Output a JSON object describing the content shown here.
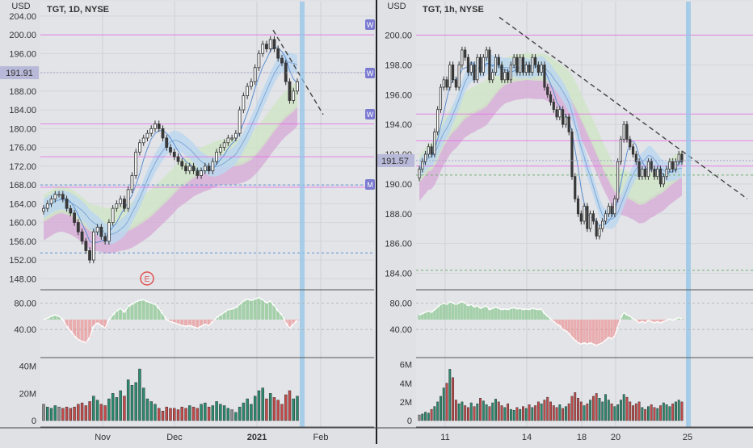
{
  "chart_data": [
    {
      "type": "candlestick",
      "title": "TGT, 1D, NYSE",
      "currency": "USD",
      "current_price_label": "191.91",
      "y_ticks": [
        "204.00",
        "200.00",
        "196.00",
        "192.00",
        "188.00",
        "184.00",
        "180.00",
        "176.00",
        "172.00",
        "168.00",
        "164.00",
        "160.00",
        "156.00",
        "152.00",
        "148.00"
      ],
      "ylim": [
        146,
        205
      ],
      "x_ticks": [
        "Nov",
        "Dec",
        "2021",
        "Feb"
      ],
      "event_marker": "E",
      "side_labels": [
        "W",
        "W",
        "W",
        "M"
      ],
      "x": [
        "10-14",
        "10-15",
        "10-16",
        "10-19",
        "10-20",
        "10-21",
        "10-22",
        "10-23",
        "10-26",
        "10-27",
        "10-28",
        "10-29",
        "10-30",
        "11-02",
        "11-03",
        "11-04",
        "11-05",
        "11-06",
        "11-09",
        "11-10",
        "11-11",
        "11-12",
        "11-13",
        "11-16",
        "11-17",
        "11-18",
        "11-19",
        "11-20",
        "11-23",
        "11-24",
        "11-25",
        "11-27",
        "11-30",
        "12-01",
        "12-02",
        "12-03",
        "12-04",
        "12-07",
        "12-08",
        "12-09",
        "12-10",
        "12-11",
        "12-14",
        "12-15",
        "12-16",
        "12-17",
        "12-18",
        "12-21",
        "12-22",
        "12-23",
        "12-24",
        "12-28",
        "12-29",
        "12-30",
        "12-31",
        "01-04",
        "01-05",
        "01-06",
        "01-07",
        "01-08",
        "01-11",
        "01-12",
        "01-13",
        "01-14",
        "01-15",
        "01-19",
        "01-20"
      ],
      "close": [
        163,
        164,
        165,
        166,
        166,
        165,
        163,
        162,
        160,
        158,
        156,
        154,
        152,
        158,
        159,
        157,
        156,
        160,
        163,
        164,
        165,
        163,
        167,
        170,
        175,
        177,
        178,
        179,
        180,
        181,
        180,
        178,
        176,
        175,
        174,
        173,
        172,
        171,
        172,
        171,
        170,
        171,
        172,
        171,
        173,
        175,
        176,
        177,
        178,
        178,
        179,
        184,
        187,
        189,
        190,
        193,
        196,
        198,
        197,
        199,
        197,
        195,
        194,
        190,
        186,
        188,
        190
      ],
      "indicator": {
        "y_ticks": [
          "80.00",
          "40.00"
        ],
        "ylim": [
          0,
          100
        ],
        "values": [
          55,
          57,
          60,
          62,
          60,
          55,
          45,
          38,
          30,
          25,
          22,
          20,
          28,
          45,
          50,
          46,
          42,
          55,
          62,
          68,
          72,
          66,
          75,
          78,
          82,
          84,
          85,
          82,
          80,
          78,
          72,
          64,
          55,
          52,
          50,
          48,
          46,
          45,
          46,
          44,
          42,
          45,
          48,
          46,
          52,
          58,
          62,
          66,
          70,
          71,
          73,
          78,
          83,
          86,
          84,
          86,
          88,
          85,
          80,
          83,
          76,
          68,
          62,
          50,
          42,
          48,
          54
        ]
      },
      "volume": {
        "y_ticks": [
          "40M",
          "20M",
          "0"
        ],
        "ylim": [
          0,
          44
        ],
        "values": [
          12,
          10,
          9,
          11,
          10,
          9,
          10,
          9,
          10,
          12,
          13,
          11,
          14,
          18,
          15,
          12,
          11,
          16,
          20,
          17,
          22,
          18,
          30,
          26,
          28,
          38,
          24,
          16,
          14,
          12,
          9,
          7,
          10,
          9,
          9,
          8,
          10,
          9,
          11,
          10,
          9,
          12,
          13,
          10,
          11,
          14,
          12,
          11,
          9,
          8,
          6,
          10,
          13,
          16,
          12,
          18,
          22,
          24,
          16,
          20,
          17,
          15,
          12,
          19,
          22,
          16,
          18
        ]
      }
    },
    {
      "type": "candlestick",
      "title": "TGT, 1h, NYSE",
      "currency": "USD",
      "current_price_label": "191.57",
      "y_ticks": [
        "200.00",
        "198.00",
        "196.00",
        "194.00",
        "192.00",
        "190.00",
        "188.00",
        "186.00",
        "184.00"
      ],
      "ylim": [
        183,
        201.6
      ],
      "x_ticks": [
        "11",
        "14",
        "18",
        "20",
        "25"
      ],
      "close": [
        191,
        191.5,
        192,
        192.5,
        192,
        193.5,
        195,
        196.5,
        197,
        196.5,
        198,
        197,
        196.5,
        198,
        199,
        198.5,
        197.5,
        198,
        197,
        198.5,
        197.5,
        198.5,
        199,
        197,
        197.5,
        198.5,
        198,
        197,
        197.5,
        197,
        198,
        198.5,
        197.5,
        198.5,
        197.5,
        198,
        197.5,
        198.5,
        198,
        197.5,
        198,
        196.5,
        196,
        195.5,
        195,
        194.5,
        195,
        194,
        194.5,
        193.5,
        190.5,
        189,
        188,
        187.5,
        188.5,
        187,
        188,
        187.5,
        186.5,
        187,
        187.5,
        188,
        188.5,
        188,
        189,
        191.5,
        193,
        194,
        193,
        192.5,
        192,
        191.5,
        190.5,
        191,
        190.5,
        191.5,
        191,
        190.5,
        191,
        190,
        190.5,
        191,
        191.5,
        191,
        191.5,
        192,
        191.5
      ],
      "indicator": {
        "y_ticks": [
          "80.00",
          "40.00"
        ],
        "ylim": [
          0,
          100
        ],
        "values": [
          62,
          64,
          66,
          68,
          66,
          70,
          74,
          78,
          80,
          78,
          82,
          80,
          78,
          80,
          82,
          80,
          76,
          78,
          74,
          76,
          72,
          74,
          76,
          70,
          72,
          74,
          72,
          70,
          71,
          70,
          72,
          73,
          71,
          72,
          70,
          71,
          70,
          72,
          71,
          70,
          71,
          64,
          60,
          56,
          52,
          48,
          46,
          40,
          38,
          34,
          28,
          24,
          20,
          18,
          20,
          18,
          20,
          18,
          16,
          18,
          20,
          24,
          28,
          26,
          30,
          44,
          58,
          66,
          62,
          60,
          56,
          54,
          50,
          52,
          50,
          54,
          52,
          50,
          52,
          50,
          52,
          54,
          56,
          54,
          56,
          58,
          56
        ]
      },
      "volume": {
        "y_ticks": [
          "6M",
          "4M",
          "2M",
          "0"
        ],
        "ylim": [
          0,
          6.4
        ],
        "values": [
          0.6,
          0.7,
          0.9,
          0.8,
          1.2,
          1.5,
          2.0,
          2.6,
          3.5,
          4.0,
          5.5,
          4.6,
          2.2,
          1.8,
          2.0,
          1.6,
          1.4,
          1.9,
          1.5,
          1.8,
          2.4,
          2.1,
          1.7,
          1.5,
          1.9,
          2.3,
          2.0,
          1.6,
          1.4,
          1.8,
          1.2,
          1.1,
          1.4,
          1.2,
          1.5,
          1.3,
          1.7,
          1.4,
          1.6,
          2.0,
          1.8,
          2.2,
          2.5,
          2.0,
          1.6,
          1.4,
          1.7,
          1.3,
          1.5,
          1.8,
          2.6,
          3.0,
          2.4,
          2.0,
          1.6,
          1.8,
          2.2,
          2.6,
          2.9,
          2.4,
          2.0,
          2.8,
          2.2,
          1.8,
          1.5,
          1.7,
          2.2,
          2.8,
          2.5,
          2.0,
          1.6,
          1.8,
          2.0,
          1.4,
          1.2,
          1.5,
          1.7,
          1.4,
          1.3,
          1.6,
          1.9,
          1.7,
          1.5,
          1.8,
          2.0,
          2.2,
          2.0
        ]
      }
    }
  ],
  "colors": {
    "background": "#dfe1e5",
    "bull_candle": "#ffffff",
    "bear_candle": "#3a3a3a",
    "vol_up": "#2a8c6e",
    "vol_down": "#c74a4a",
    "vol_neutral": "#8c8c8c",
    "highlight_bar": "#8fc3ea",
    "ribbon_blue": "#bcd7ef",
    "ribbon_green": "#cfe5c6",
    "ribbon_pink": "#d6a8d6",
    "osc_green": "#6fbf73",
    "osc_red": "#f08080",
    "magenta_line": "#e66ae6",
    "price_tag": "#b8b8d8"
  }
}
